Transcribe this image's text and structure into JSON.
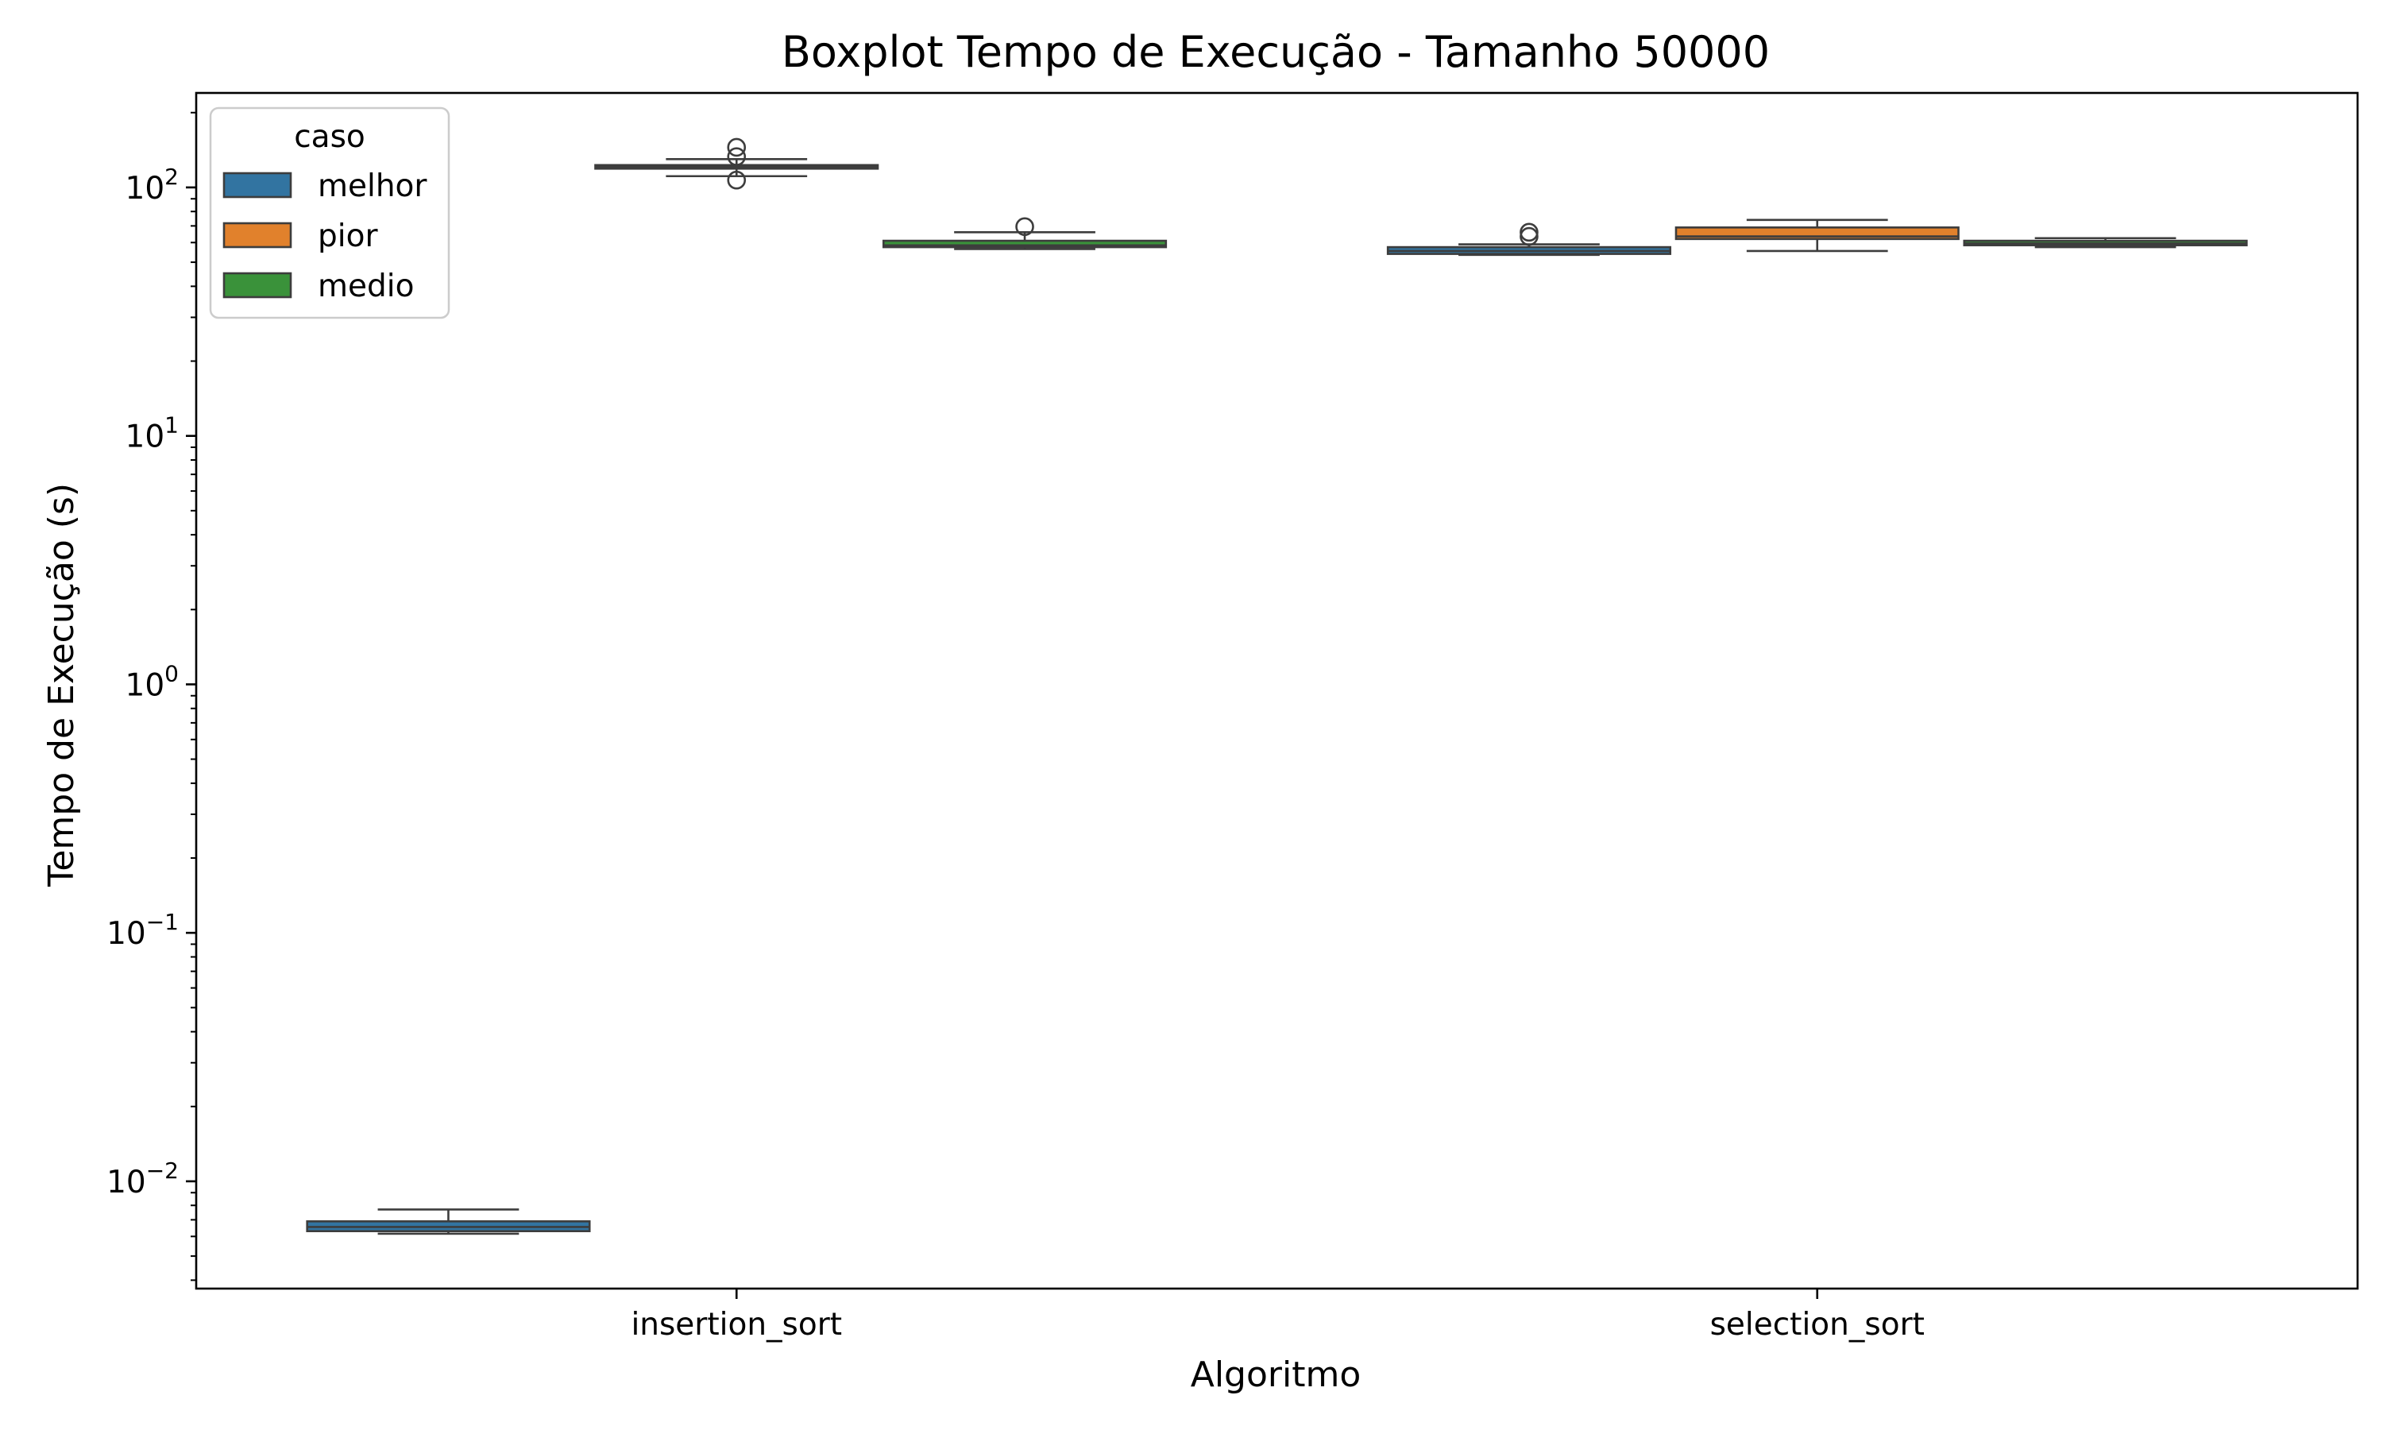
{
  "chart_data": {
    "type": "boxplot",
    "title": "Boxplot Tempo de Execução - Tamanho 50000",
    "xlabel": "Algoritmo",
    "ylabel": "Tempo de Execução (s)",
    "yscale": "log",
    "ylim": [
      0.0037,
      240
    ],
    "categories": [
      "insertion_sort",
      "selection_sort"
    ],
    "y_ticks": [
      {
        "value": 0.01,
        "base": "10",
        "exp": "−2"
      },
      {
        "value": 0.1,
        "base": "10",
        "exp": "−1"
      },
      {
        "value": 1,
        "base": "10",
        "exp": "0"
      },
      {
        "value": 10,
        "base": "10",
        "exp": "1"
      },
      {
        "value": 100,
        "base": "10",
        "exp": "2"
      }
    ],
    "grid": false,
    "legend": {
      "title": "caso",
      "position": "top-left",
      "entries": [
        "melhor",
        "pior",
        "medio"
      ]
    },
    "series": [
      {
        "name": "melhor",
        "color": "#3274a1",
        "boxes": [
          {
            "category": "insertion_sort",
            "whisker_low": 0.00615,
            "q1": 0.0063,
            "median": 0.00655,
            "q3": 0.0069,
            "whisker_high": 0.0077,
            "outliers": []
          },
          {
            "category": "selection_sort",
            "whisker_low": 53.5,
            "q1": 54.0,
            "median": 55.5,
            "q3": 57.5,
            "whisker_high": 59.0,
            "outliers": [
              63.5,
              66.0
            ]
          }
        ]
      },
      {
        "name": "pior",
        "color": "#e1812c",
        "boxes": [
          {
            "category": "insertion_sort",
            "whisker_low": 111.0,
            "q1": 119.0,
            "median": 121.0,
            "q3": 123.0,
            "whisker_high": 130.0,
            "outliers": [
              107.0,
              133.0,
              145.0
            ]
          },
          {
            "category": "selection_sort",
            "whisker_low": 55.5,
            "q1": 62.0,
            "median": 63.5,
            "q3": 69.0,
            "whisker_high": 74.0,
            "outliers": []
          }
        ]
      },
      {
        "name": "medio",
        "color": "#3a923a",
        "boxes": [
          {
            "category": "insertion_sort",
            "whisker_low": 56.5,
            "q1": 57.5,
            "median": 58.5,
            "q3": 61.0,
            "whisker_high": 66.0,
            "outliers": [
              69.5
            ]
          },
          {
            "category": "selection_sort",
            "whisker_low": 57.5,
            "q1": 58.5,
            "median": 59.5,
            "q3": 61.0,
            "whisker_high": 62.5,
            "outliers": []
          }
        ]
      }
    ]
  }
}
